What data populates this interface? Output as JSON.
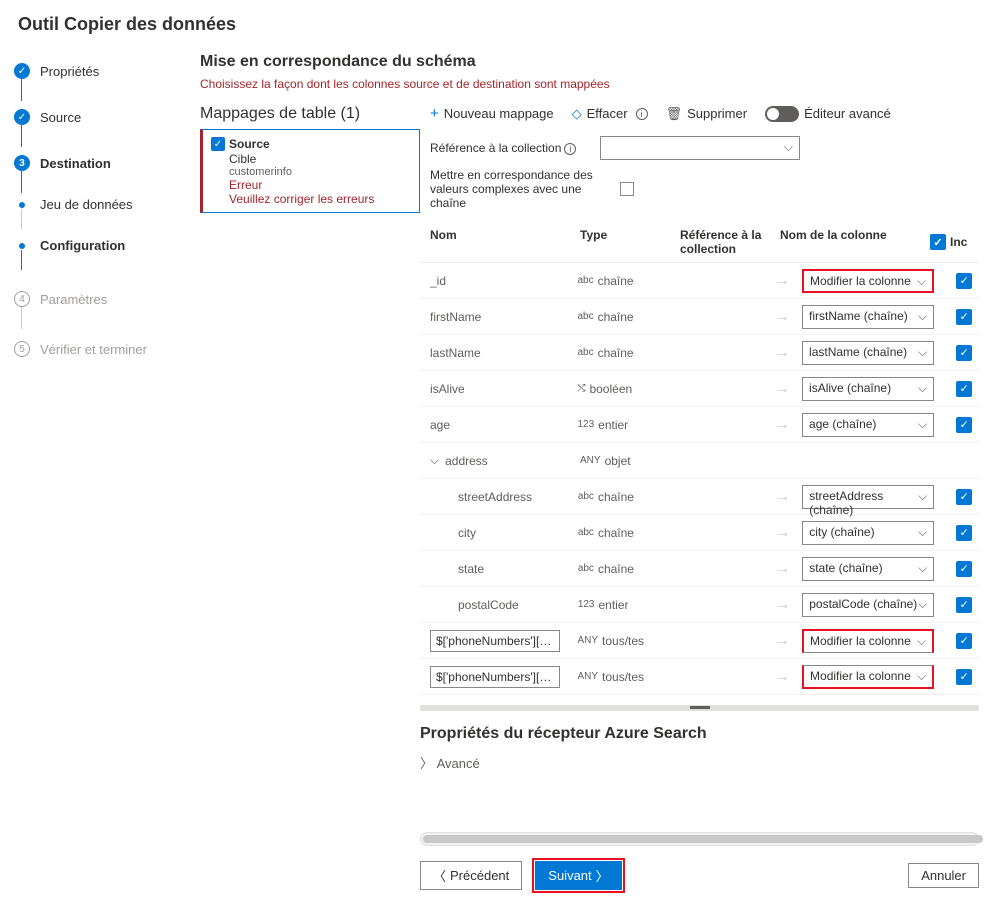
{
  "title": "Outil Copier des données",
  "steps": {
    "properties": "Propriétés",
    "source": "Source",
    "destination": "Destination",
    "dataset": "Jeu de données",
    "configuration": "Configuration",
    "parameters": "Paramètres",
    "verify": "Vérifier et terminer"
  },
  "section": {
    "heading": "Mise en correspondance du schéma",
    "sub": "Choisissez la façon dont les colonnes source et de destination sont mappées"
  },
  "mappings": {
    "header": "Mappages de table (1)",
    "source": "Source",
    "target": "Cible",
    "targetName": "customerinfo",
    "error": "Erreur",
    "errorMsg": "Veuillez corriger les erreurs"
  },
  "toolbar": {
    "new": "Nouveau mappage",
    "clear": "Effacer",
    "delete": "Supprimer",
    "advanced": "Éditeur avancé"
  },
  "collref": {
    "label": "Référence à la collection",
    "complex": "Mettre en correspondance des valeurs complexes avec une chaîne"
  },
  "columns": {
    "name": "Nom",
    "type": "Type",
    "ref": "Référence à la collection",
    "dest": "Nom de la colonne",
    "inc": "Inc"
  },
  "types": {
    "string": "chaîne",
    "bool": "booléen",
    "int": "entier",
    "object": "objet",
    "any": "tous/tes"
  },
  "editCol": "Modifier la colonne",
  "rows": [
    {
      "name": "_id",
      "typeIcon": "abc",
      "type": "chaîne",
      "dest": "Modifier la colonne",
      "hl": true,
      "indent": 0
    },
    {
      "name": "firstName",
      "typeIcon": "abc",
      "type": "chaîne",
      "dest": "firstName (chaîne)",
      "indent": 0
    },
    {
      "name": "lastName",
      "typeIcon": "abc",
      "type": "chaîne",
      "dest": "lastName (chaîne)",
      "indent": 0
    },
    {
      "name": "isAlive",
      "typeIcon": "⤭",
      "type": "booléen",
      "dest": "isAlive (chaîne)",
      "indent": 0
    },
    {
      "name": "age",
      "typeIcon": "123",
      "type": "entier",
      "dest": "age (chaîne)",
      "indent": 0
    },
    {
      "name": "address",
      "typeIcon": "ANY",
      "type": "objet",
      "dest": "",
      "indent": 0,
      "expand": true,
      "noSelect": true
    },
    {
      "name": "streetAddress",
      "typeIcon": "abc",
      "type": "chaîne",
      "dest": "streetAddress (chaîne)",
      "indent": 2
    },
    {
      "name": "city",
      "typeIcon": "abc",
      "type": "chaîne",
      "dest": "city (chaîne)",
      "indent": 2
    },
    {
      "name": "state",
      "typeIcon": "abc",
      "type": "chaîne",
      "dest": "state (chaîne)",
      "indent": 2
    },
    {
      "name": "postalCode",
      "typeIcon": "123",
      "type": "entier",
      "dest": "postalCode (chaîne)",
      "indent": 2
    },
    {
      "name": "$['phoneNumbers'][0...",
      "typeIcon": "ANY",
      "type": "tous/tes",
      "dest": "Modifier la colonne",
      "indent": 0,
      "asInput": true,
      "hl2": "top"
    },
    {
      "name": "$['phoneNumbers'][0...",
      "typeIcon": "ANY",
      "type": "tous/tes",
      "dest": "Modifier la colonne",
      "indent": 0,
      "asInput": true,
      "hl2": "bottom"
    }
  ],
  "receiver": {
    "title": "Propriétés du récepteur Azure Search",
    "advanced": "Avancé"
  },
  "footer": {
    "prev": "Précédent",
    "next": "Suivant",
    "cancel": "Annuler"
  }
}
